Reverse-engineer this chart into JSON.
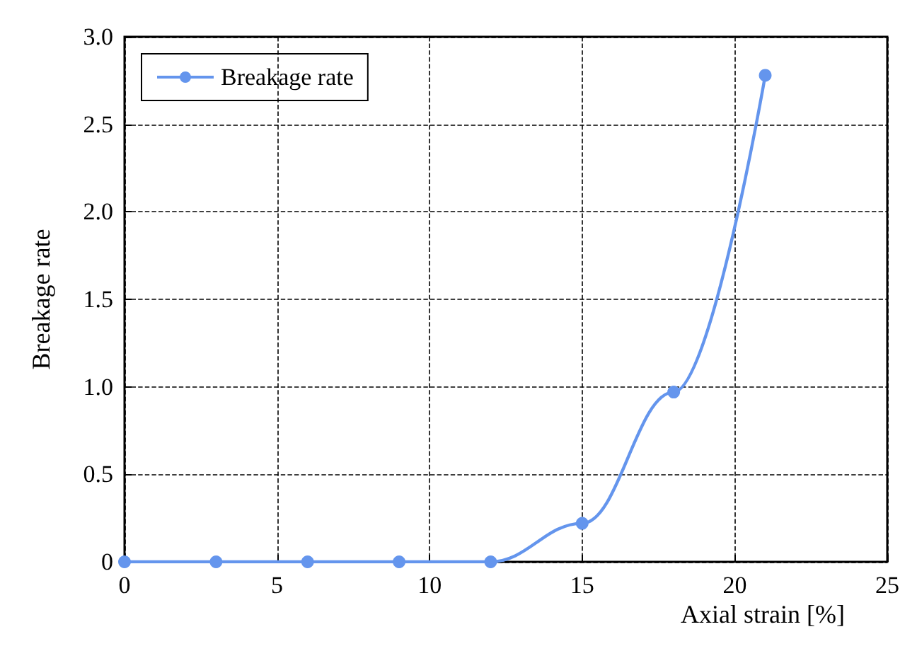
{
  "chart_data": {
    "type": "line",
    "xlabel": "Axial strain [%]",
    "ylabel": "Breakage rate",
    "x": [
      0,
      3,
      6,
      9,
      12,
      15,
      18,
      21
    ],
    "series": [
      {
        "name": "Breakage rate",
        "color": "#6495ed",
        "values": [
          0,
          0,
          0,
          0,
          0,
          0.22,
          0.97,
          2.78
        ]
      }
    ],
    "xlim": [
      0,
      25
    ],
    "xticks": [
      0,
      5,
      10,
      15,
      20,
      25
    ],
    "ylim": [
      0,
      3
    ],
    "yticks": [
      0,
      0.5,
      {
        "value": 1,
        "label": "1.0"
      },
      1.5,
      {
        "value": 2,
        "label": "2.0"
      },
      2.5,
      {
        "value": 3,
        "label": "3.0"
      }
    ],
    "grid": true,
    "legend": "top left",
    "marker": "circle",
    "line_style": "solid"
  }
}
